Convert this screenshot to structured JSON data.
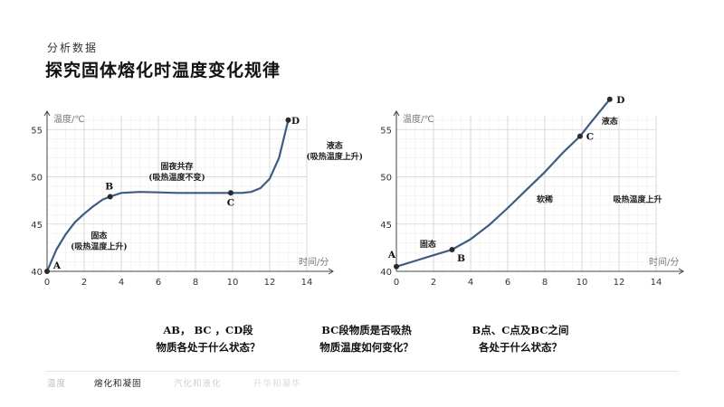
{
  "header": {
    "subtitle": "分析数据",
    "title": "探究固体熔化时温度变化规律"
  },
  "chart_data": [
    {
      "type": "line",
      "ylabel": "温度/℃",
      "xlabel": "时间/分",
      "x_ticks": [
        0,
        2,
        4,
        6,
        8,
        10,
        12,
        14
      ],
      "y_ticks": [
        40,
        45,
        50,
        55
      ],
      "xlim": [
        0,
        14
      ],
      "ylim": [
        40,
        55
      ],
      "grid": true,
      "series": [
        {
          "values": [
            [
              0,
              40
            ],
            [
              0.5,
              42.3
            ],
            [
              1,
              43.9
            ],
            [
              1.5,
              45.2
            ],
            [
              2,
              46.1
            ],
            [
              2.5,
              46.9
            ],
            [
              3,
              47.6
            ],
            [
              3.4,
              47.9
            ],
            [
              4,
              48.3
            ],
            [
              5,
              48.4
            ],
            [
              6,
              48.35
            ],
            [
              7,
              48.3
            ],
            [
              8,
              48.3
            ],
            [
              9,
              48.3
            ],
            [
              9.9,
              48.3
            ],
            [
              10.5,
              48.3
            ],
            [
              11,
              48.4
            ],
            [
              11.5,
              48.8
            ],
            [
              12,
              49.8
            ],
            [
              12.5,
              52
            ],
            [
              13,
              56
            ]
          ]
        }
      ],
      "points": [
        {
          "label": "A",
          "x": 0,
          "y": 40
        },
        {
          "label": "B",
          "x": 3.4,
          "y": 47.9
        },
        {
          "label": "C",
          "x": 9.9,
          "y": 48.3
        },
        {
          "label": "D",
          "x": 13,
          "y": 56
        }
      ],
      "annotations": [
        {
          "lines": [
            "固态",
            "(吸热温度上升)"
          ],
          "x": 2.8,
          "y": 43.5
        },
        {
          "lines": [
            "固夜共存",
            "(吸热温度不变)"
          ],
          "x": 7,
          "y": 50.8
        },
        {
          "lines": [
            "液态",
            "(吸热温度上升)"
          ],
          "x": 15.5,
          "y": 53
        }
      ]
    },
    {
      "type": "line",
      "ylabel": "温度/℃",
      "xlabel": "时间/分",
      "x_ticks": [
        0,
        2,
        4,
        6,
        8,
        10,
        12,
        14
      ],
      "y_ticks": [
        40,
        45,
        50,
        55
      ],
      "xlim": [
        0,
        14
      ],
      "ylim": [
        40,
        55
      ],
      "grid": true,
      "series": [
        {
          "values": [
            [
              0,
              40.5
            ],
            [
              1,
              41.1
            ],
            [
              2,
              41.7
            ],
            [
              3,
              42.3
            ],
            [
              4,
              43.4
            ],
            [
              5,
              44.9
            ],
            [
              6,
              46.7
            ],
            [
              7,
              48.6
            ],
            [
              8,
              50.5
            ],
            [
              9,
              52.6
            ],
            [
              9.9,
              54.3
            ],
            [
              10.5,
              55.8
            ],
            [
              11.5,
              58.2
            ]
          ]
        }
      ],
      "points": [
        {
          "label": "A",
          "x": 0,
          "y": 40.5
        },
        {
          "label": "B",
          "x": 3,
          "y": 42.3
        },
        {
          "label": "C",
          "x": 9.9,
          "y": 54.3
        },
        {
          "label": "D",
          "x": 11.5,
          "y": 58.2
        }
      ],
      "annotations": [
        {
          "lines": [
            "固态"
          ],
          "x": 1.7,
          "y": 42.6
        },
        {
          "lines": [
            "软稀"
          ],
          "x": 8,
          "y": 47.3
        },
        {
          "lines": [
            "液态"
          ],
          "x": 11.5,
          "y": 55.6
        },
        {
          "lines": [
            "吸热温度上升"
          ],
          "x": 13,
          "y": 47.3
        }
      ]
    }
  ],
  "questions": [
    {
      "line1": "AB， BC ，CD段",
      "line2": "物质各处于什么状态？"
    },
    {
      "line1": "BC段物质是否吸热",
      "line2": "物质温度如何变化？"
    },
    {
      "line1": "B点、C点及BC之间",
      "line2": "各处于什么状态？"
    }
  ],
  "footer_tabs": [
    {
      "label": "温度",
      "color": "#bdbdbd"
    },
    {
      "label": "熔化和凝固",
      "color": "#222222"
    },
    {
      "label": "汽化和液化",
      "color": "#d0d0d0"
    },
    {
      "label": "升华和凝华",
      "color": "#dadada"
    }
  ],
  "colors": {
    "line": "#3f5b80",
    "point": "#2a2a2a",
    "grid_minor": "#ededed",
    "grid_major": "#d3d3d3"
  }
}
